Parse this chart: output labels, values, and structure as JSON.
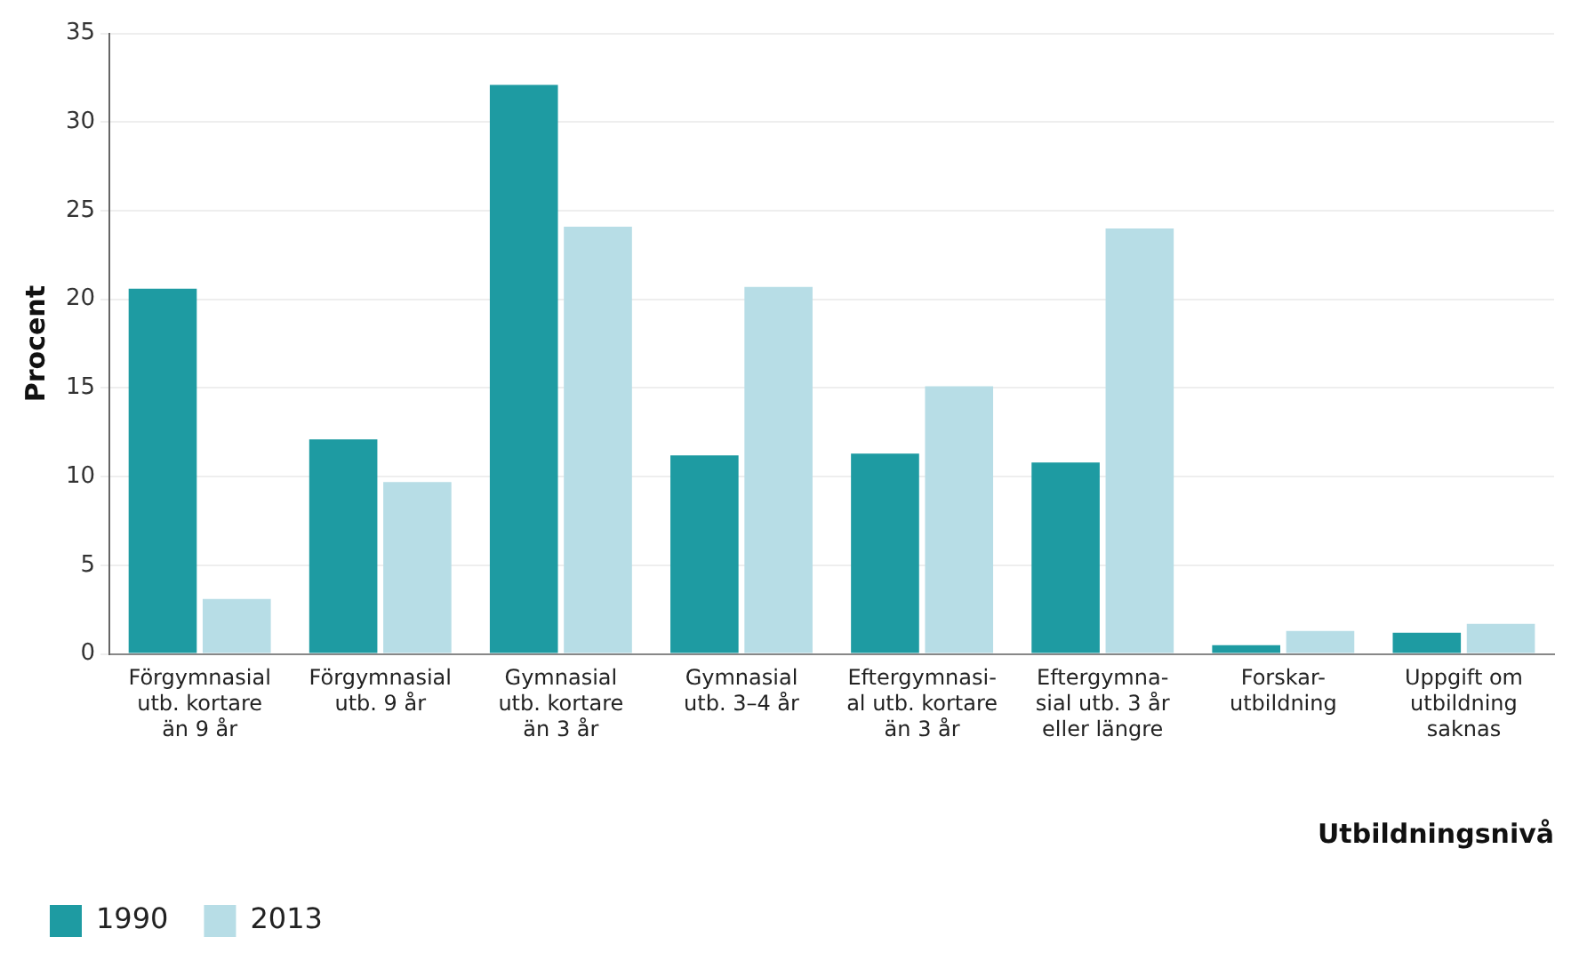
{
  "chart_data": {
    "type": "bar",
    "xlabel": "Utbildningsnivå",
    "ylabel": "Procent",
    "categories": [
      "Förgymnasial\nutb. kortare\nän 9 år",
      "Förgymnasial\nutb. 9 år",
      "Gymnasial\nutb. kortare\nän 3 år",
      "Gymnasial\nutb. 3–4 år",
      "Eftergymnasi-\nal utb. kortare\nän 3 år",
      "Eftergymna-\nsial utb. 3 år\neller längre",
      "Forskar-\nutbildning",
      "Uppgift om\nutbildning\nsaknas"
    ],
    "series": [
      {
        "name": "1990",
        "color": "#1e9ba2",
        "values": [
          20.6,
          12.1,
          32.1,
          11.2,
          11.3,
          10.8,
          0.5,
          1.2
        ]
      },
      {
        "name": "2013",
        "color": "#b7dde6",
        "values": [
          3.1,
          9.7,
          24.1,
          20.7,
          15.1,
          24.0,
          1.3,
          1.7
        ]
      }
    ],
    "ylim": [
      0,
      35
    ],
    "yticks": [
      0,
      5,
      10,
      15,
      20,
      25,
      30,
      35
    ],
    "grid": "y",
    "legend": "bottom left"
  }
}
